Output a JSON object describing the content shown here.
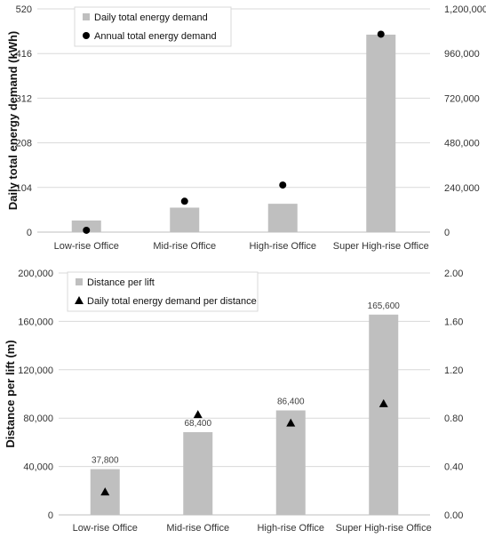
{
  "colors": {
    "bar": "#bfbfbf",
    "marker": "#000000",
    "grid": "#d9d9d9",
    "axis": "#bfbfbf"
  },
  "chart_data": [
    {
      "type": "bar",
      "categories": [
        "Low-rise Office",
        "Mid-rise Office",
        "High-rise Office",
        "Super High-rise Office"
      ],
      "ylabel": "Daily total energy demand (kWh)",
      "ylim": [
        0,
        520
      ],
      "yticks": [
        "0",
        "104",
        "208",
        "312",
        "416",
        "520"
      ],
      "y2lim": [
        0,
        1200000
      ],
      "y2ticks": [
        "0",
        "240,000",
        "480,000",
        "720,000",
        "960,000",
        "1,200,000"
      ],
      "legend": {
        "placement": "top-left"
      },
      "series": [
        {
          "name": "Daily total energy demand",
          "kind": "bar",
          "axis": "left",
          "values": [
            27,
            57,
            66,
            460
          ]
        },
        {
          "name": "Annual total energy demand",
          "kind": "circle",
          "axis": "right",
          "values": [
            9855,
            166000,
            253000,
            1064000
          ]
        }
      ]
    },
    {
      "type": "bar",
      "categories": [
        "Low-rise Office",
        "Mid-rise Office",
        "High-rise Office",
        "Super High-rise Office"
      ],
      "ylabel": "Distance per lift (m)",
      "ylim": [
        0,
        200000
      ],
      "yticks": [
        "0",
        "40,000",
        "80,000",
        "120,000",
        "160,000",
        "200,000"
      ],
      "y2lim": [
        0,
        2.0
      ],
      "y2ticks": [
        "0.00",
        "0.40",
        "0.80",
        "1.20",
        "1.60",
        "2.00"
      ],
      "legend": {
        "placement": "top-left"
      },
      "series": [
        {
          "name": "Distance per lift",
          "kind": "bar",
          "axis": "left",
          "values": [
            37800,
            68400,
            86400,
            165600
          ],
          "labels": [
            "37,800",
            "68,400",
            "86,400",
            "165,600"
          ]
        },
        {
          "name": "Daily total energy demand per distance",
          "kind": "triangle",
          "axis": "right",
          "values": [
            0.19,
            0.83,
            0.76,
            0.92
          ]
        }
      ]
    }
  ]
}
